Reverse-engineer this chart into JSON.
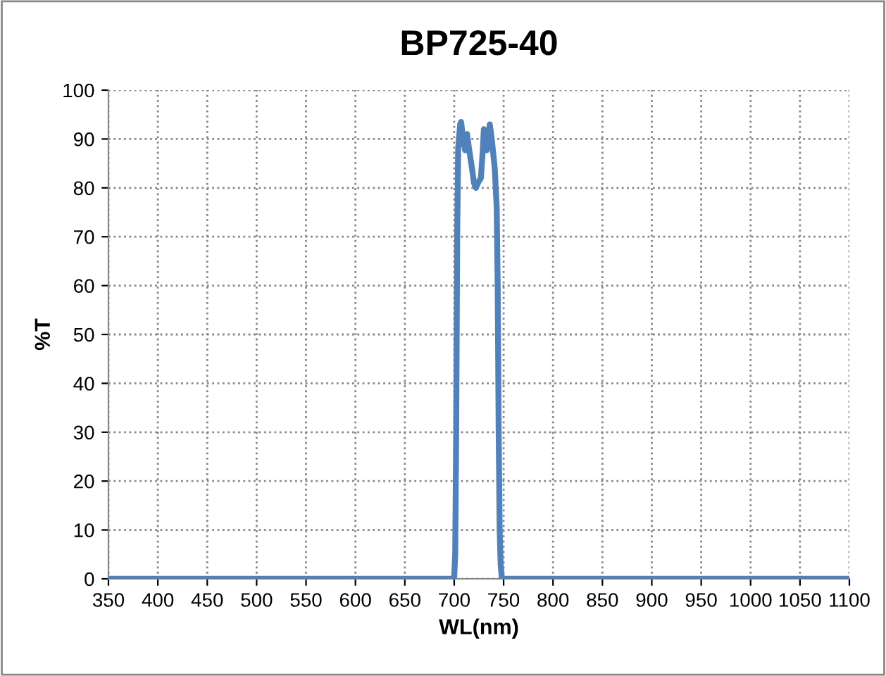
{
  "chart_data": {
    "type": "line",
    "title": "BP725-40",
    "xlabel": "WL(nm)",
    "ylabel": "%T",
    "series": [
      {
        "color": "#4f81bd",
        "x": [
          350,
          600,
          698,
          700,
          701,
          702,
          703,
          704,
          706,
          707,
          709,
          711,
          713,
          715,
          718,
          720,
          722,
          724,
          727,
          729,
          730,
          732,
          733,
          735,
          736,
          738,
          740,
          741,
          742,
          743,
          744,
          745,
          746,
          747,
          748,
          750,
          800,
          1100
        ],
        "values": [
          0,
          0,
          0,
          0.5,
          5,
          30,
          70,
          88,
          93,
          93.5,
          90,
          87.7,
          91,
          88,
          84,
          81,
          80,
          81,
          82,
          88,
          92,
          90,
          87.7,
          91,
          93,
          90,
          86,
          84,
          80,
          76,
          60,
          30,
          10,
          3,
          0.5,
          0,
          0,
          0
        ]
      }
    ],
    "xlim": [
      350,
      1100
    ],
    "xticks": [
      350,
      400,
      450,
      500,
      550,
      600,
      650,
      700,
      750,
      800,
      850,
      900,
      950,
      1000,
      1050,
      1100
    ],
    "ylim": [
      0,
      100
    ],
    "yticks": [
      0,
      10,
      20,
      30,
      40,
      50,
      60,
      70,
      80,
      90,
      100
    ],
    "grid": true,
    "marker": "none",
    "line_style": "solid"
  }
}
